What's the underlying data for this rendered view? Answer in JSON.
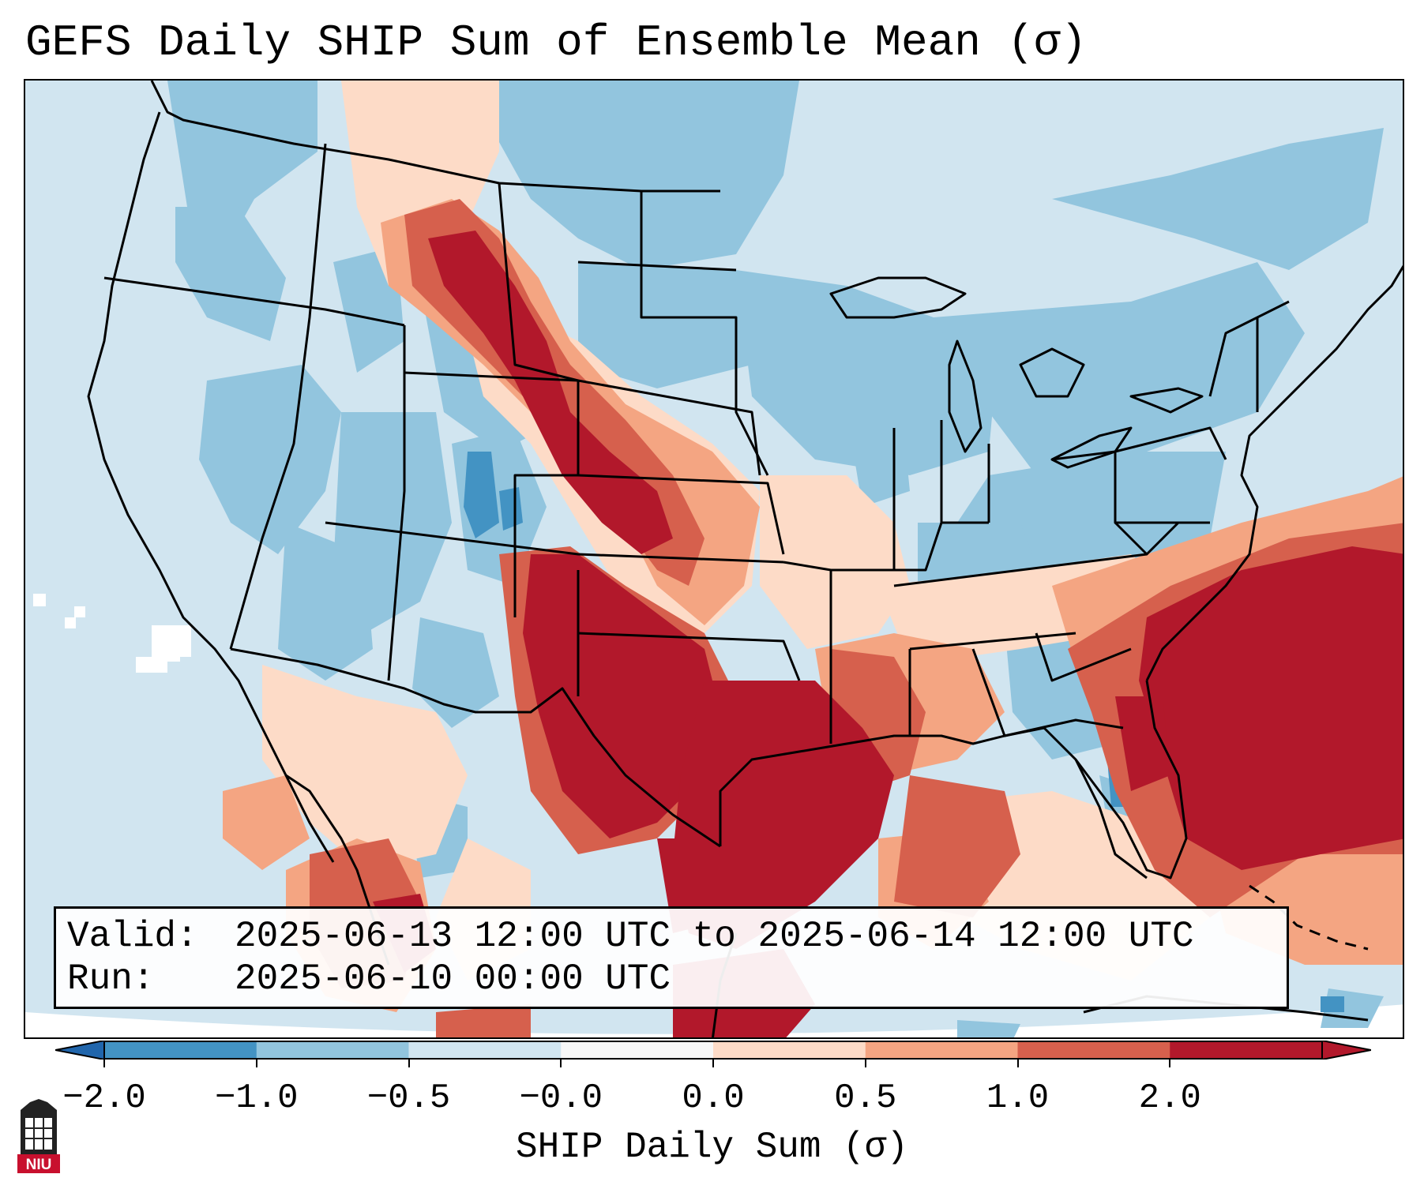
{
  "title": "GEFS Daily SHIP Sum of Ensemble Mean (σ)",
  "info": {
    "valid_label": "Valid:",
    "valid_value": "2025-06-13 12:00 UTC to 2025-06-14 12:00 UTC",
    "run_label": "Run:",
    "run_value": "2025-06-10 00:00 UTC"
  },
  "colorbar": {
    "label": "SHIP Daily Sum (σ)",
    "ticks": [
      "−2.0",
      "−1.0",
      "−0.5",
      "−0.0",
      "0.0",
      "0.5",
      "1.0",
      "2.0"
    ],
    "colors": [
      "#4393c3",
      "#92c5de",
      "#d1e5f0",
      "#f7f7f7",
      "#fddbc7",
      "#f4a582",
      "#d6604d",
      "#b2182b"
    ],
    "under_color": "#2166ac",
    "over_color": "#b2182b"
  },
  "logo": {
    "text": "NIU",
    "color": "#c8102e"
  },
  "map": {
    "projection": "Lambert conformal, CONUS",
    "region": "Contiguous United States, southern Canada, northern Mexico, Gulf of Mexico, western Atlantic",
    "high_anomaly_regions": [
      "Texas",
      "Oklahoma",
      "Gulf Coast",
      "western Atlantic off Southeast coast",
      "High Plains corridor"
    ]
  }
}
